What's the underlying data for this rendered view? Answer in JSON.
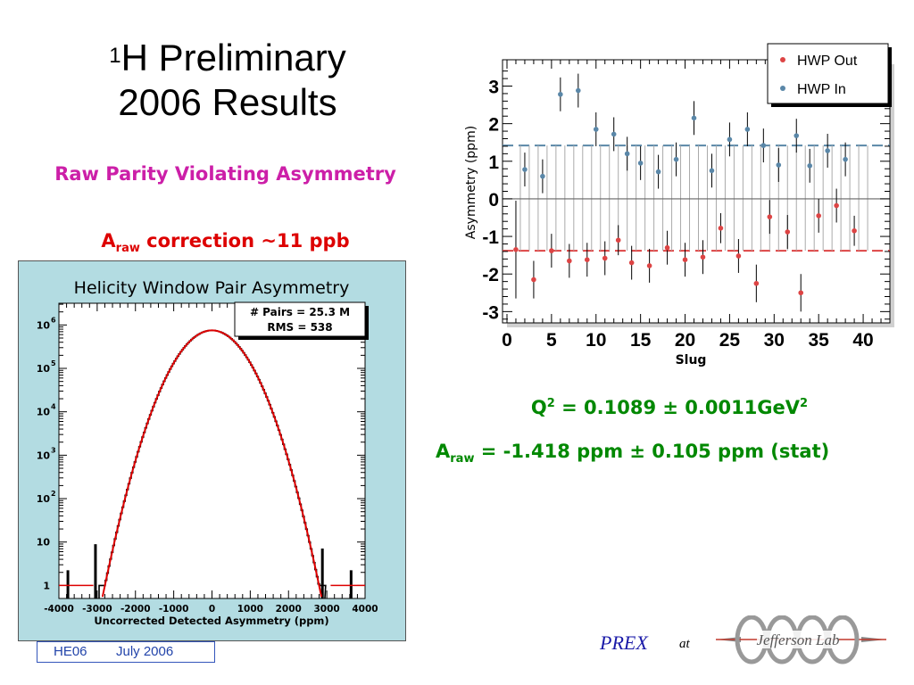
{
  "slide": {
    "title_sup": "1",
    "title_line1": "H  Preliminary",
    "title_line2": "2006  Results",
    "subtitle": "Raw Parity Violating Asymmetry",
    "correction": {
      "a": "A",
      "sub": "raw",
      "rest": " correction ~11 ppb"
    },
    "q2": {
      "text": "Q",
      "sup": "2",
      "value": " = 0.1089 ± 0.0011GeV",
      "sup2": "2"
    },
    "araw": {
      "a": "A",
      "sub": "raw",
      "value": " = -1.418 ppm ± 0.105 ppm (stat)"
    },
    "footer": {
      "conf": "HE06",
      "date": "July  2006"
    },
    "prex": "PREX",
    "at": "at",
    "logo_text": "Jefferson Lab"
  },
  "colors": {
    "out": "#dd4444",
    "in": "#5a87a8",
    "magenta": "#cc1fa8",
    "green": "#008800",
    "panel_bg": "#b3dce2"
  },
  "chart_data": [
    {
      "type": "scatter",
      "title": "",
      "xlabel": "Slug",
      "ylabel": "Asymmetry (ppm)",
      "xlim": [
        -0.5,
        43
      ],
      "ylim": [
        -3.3,
        3.7
      ],
      "xticks": [
        0,
        5,
        10,
        15,
        20,
        25,
        30,
        35,
        40
      ],
      "yticks": [
        -3,
        -2,
        -1,
        0,
        1,
        2,
        3
      ],
      "legend": {
        "position": "top-right",
        "entries": [
          "HWP Out",
          "HWP In"
        ]
      },
      "band_levels": {
        "in": 1.42,
        "out": -1.38
      },
      "series": [
        {
          "name": "HWP Out",
          "points": [
            {
              "x": 1,
              "y": -1.35,
              "err": 1.3
            },
            {
              "x": 3,
              "y": -2.15,
              "err": 0.5
            },
            {
              "x": 5,
              "y": -1.38,
              "err": 0.45
            },
            {
              "x": 7,
              "y": -1.65,
              "err": 0.45
            },
            {
              "x": 9,
              "y": -1.62,
              "err": 0.45
            },
            {
              "x": 11,
              "y": -1.58,
              "err": 0.45
            },
            {
              "x": 12.5,
              "y": -1.1,
              "err": 0.4
            },
            {
              "x": 14,
              "y": -1.7,
              "err": 0.45
            },
            {
              "x": 16,
              "y": -1.78,
              "err": 0.45
            },
            {
              "x": 18,
              "y": -1.3,
              "err": 0.45
            },
            {
              "x": 20,
              "y": -1.62,
              "err": 0.45
            },
            {
              "x": 22,
              "y": -1.55,
              "err": 0.45
            },
            {
              "x": 24,
              "y": -0.78,
              "err": 0.4
            },
            {
              "x": 26,
              "y": -1.52,
              "err": 0.45
            },
            {
              "x": 28,
              "y": -2.25,
              "err": 0.5
            },
            {
              "x": 29.5,
              "y": -0.48,
              "err": 0.45
            },
            {
              "x": 31.5,
              "y": -0.88,
              "err": 0.45
            },
            {
              "x": 33,
              "y": -2.5,
              "err": 0.5
            },
            {
              "x": 35,
              "y": -0.45,
              "err": 0.45
            },
            {
              "x": 37,
              "y": -0.18,
              "err": 0.45
            },
            {
              "x": 39,
              "y": -0.85,
              "err": 0.4
            }
          ]
        },
        {
          "name": "HWP In",
          "points": [
            {
              "x": 2,
              "y": 0.78,
              "err": 0.45
            },
            {
              "x": 4,
              "y": 0.6,
              "err": 0.45
            },
            {
              "x": 6,
              "y": 2.78,
              "err": 0.45
            },
            {
              "x": 8,
              "y": 2.88,
              "err": 0.45
            },
            {
              "x": 10,
              "y": 1.85,
              "err": 0.45
            },
            {
              "x": 12,
              "y": 1.72,
              "err": 0.45
            },
            {
              "x": 13.5,
              "y": 1.2,
              "err": 0.45
            },
            {
              "x": 15,
              "y": 0.95,
              "err": 0.45
            },
            {
              "x": 17,
              "y": 0.72,
              "err": 0.45
            },
            {
              "x": 19,
              "y": 1.05,
              "err": 0.45
            },
            {
              "x": 21,
              "y": 2.15,
              "err": 0.45
            },
            {
              "x": 23,
              "y": 0.75,
              "err": 0.45
            },
            {
              "x": 25,
              "y": 1.58,
              "err": 0.45
            },
            {
              "x": 27,
              "y": 1.85,
              "err": 0.45
            },
            {
              "x": 28.8,
              "y": 1.42,
              "err": 0.45
            },
            {
              "x": 30.5,
              "y": 0.9,
              "err": 0.45
            },
            {
              "x": 32.5,
              "y": 1.68,
              "err": 0.45
            },
            {
              "x": 34,
              "y": 0.88,
              "err": 0.45
            },
            {
              "x": 36,
              "y": 1.28,
              "err": 0.45
            },
            {
              "x": 38,
              "y": 1.05,
              "err": 0.45
            }
          ]
        }
      ]
    },
    {
      "type": "line",
      "title": "Helicity Window Pair Asymmetry",
      "xlabel": "Uncorrected Detected Asymmetry (ppm)",
      "ylabel": "",
      "log_y": true,
      "xlim": [
        -4000,
        4000
      ],
      "ylim_log10": [
        -0.3,
        6.5
      ],
      "xticks": [
        -4000,
        -3000,
        -2000,
        -1000,
        0,
        1000,
        2000,
        3000,
        4000
      ],
      "yticks": [
        {
          "label": "1",
          "value": 1
        },
        {
          "label": "10",
          "value": 10
        },
        {
          "label": "10",
          "sup": "2",
          "value": 100
        },
        {
          "label": "10",
          "sup": "3",
          "value": 1000
        },
        {
          "label": "10",
          "sup": "4",
          "value": 10000
        },
        {
          "label": "10",
          "sup": "5",
          "value": 100000
        },
        {
          "label": "10",
          "sup": "6",
          "value": 1000000
        }
      ],
      "stats": {
        "line1": "# Pairs = 25.3 M",
        "line2": "RMS = 538"
      },
      "fit": {
        "peak": 750000,
        "mean": 0,
        "sigma": 538
      },
      "histogram_extent": [
        -2950,
        2950
      ]
    }
  ]
}
